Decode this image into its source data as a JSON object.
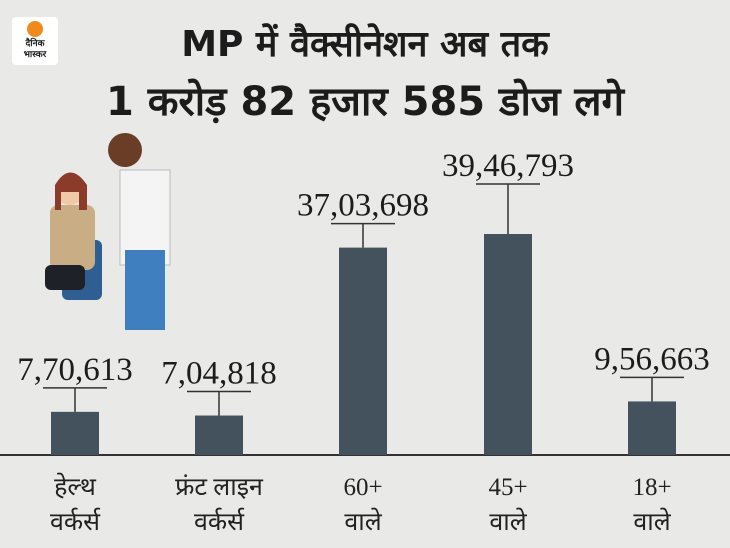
{
  "chart_data": {
    "type": "bar",
    "logo": "दैनिक\nभास्कर",
    "title": "MP में वैक्सीनेशन अब तक",
    "subtitle": "1 करोड़ 82 हजार 585 डोज लगे",
    "categories": [
      "हेल्थ\nवर्कर्स",
      "फ्रंट लाइन\nवर्कर्स",
      "60+\nवाले",
      "45+\nवाले",
      "18+\nवाले"
    ],
    "values": [
      770613,
      704818,
      3703698,
      3946793,
      956663
    ],
    "value_labels": [
      "7,70,613",
      "7,04,818",
      "37,03,698",
      "39,46,793",
      "9,56,663"
    ],
    "color": "#44525e"
  }
}
